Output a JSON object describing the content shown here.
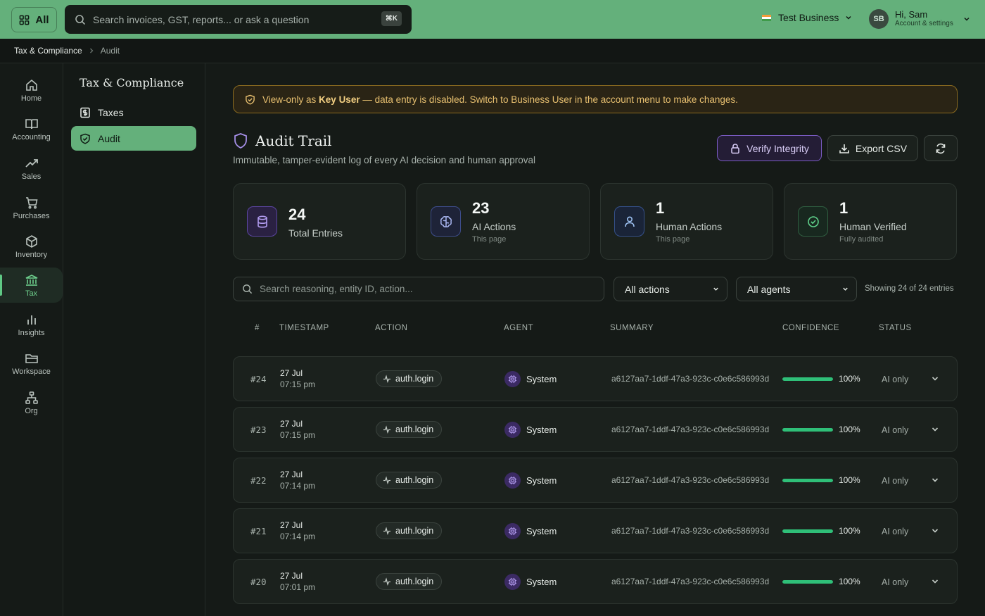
{
  "topbar": {
    "all_label": "All",
    "search_placeholder": "Search invoices, GST, reports... or ask a question",
    "shortcut": "⌘K",
    "business_name": "Test Business",
    "avatar_initials": "SB",
    "greeting": "Hi, Sam",
    "account_sub": "Account & settings"
  },
  "breadcrumb": {
    "parent": "Tax & Compliance",
    "current": "Audit"
  },
  "rail": [
    {
      "label": "Home",
      "icon": "home-icon"
    },
    {
      "label": "Accounting",
      "icon": "book-icon"
    },
    {
      "label": "Sales",
      "icon": "trend-icon"
    },
    {
      "label": "Purchases",
      "icon": "cart-icon"
    },
    {
      "label": "Inventory",
      "icon": "box-icon"
    },
    {
      "label": "Tax",
      "icon": "bank-icon"
    },
    {
      "label": "Insights",
      "icon": "bar-chart-icon"
    },
    {
      "label": "Workspace",
      "icon": "folder-icon"
    },
    {
      "label": "Org",
      "icon": "org-icon"
    }
  ],
  "subnav": {
    "title": "Tax & Compliance",
    "items": [
      {
        "label": "Taxes",
        "icon": "dollar-doc-icon"
      },
      {
        "label": "Audit",
        "icon": "shield-check-icon"
      }
    ]
  },
  "banner": {
    "prefix": "View-only as ",
    "role": "Key User",
    "suffix": " — data entry is disabled. Switch to Business User in the account menu to make changes."
  },
  "header": {
    "title": "Audit Trail",
    "subtitle": "Immutable, tamper-evident log of every AI decision and human approval",
    "verify_label": "Verify Integrity",
    "export_label": "Export CSV"
  },
  "stats": [
    {
      "value": "24",
      "label": "Total Entries",
      "sub": ""
    },
    {
      "value": "23",
      "label": "AI Actions",
      "sub": "This page"
    },
    {
      "value": "1",
      "label": "Human Actions",
      "sub": "This page"
    },
    {
      "value": "1",
      "label": "Human Verified",
      "sub": "Fully audited"
    }
  ],
  "filters": {
    "search_placeholder": "Search reasoning, entity ID, action...",
    "actions_selected": "All actions",
    "agents_selected": "All agents",
    "showing": "Showing 24 of 24 entries"
  },
  "table": {
    "columns": [
      "#",
      "TIMESTAMP",
      "ACTION",
      "AGENT",
      "SUMMARY",
      "CONFIDENCE",
      "STATUS"
    ],
    "rows": [
      {
        "num": "#24",
        "date": "27 Jul",
        "time": "07:15 pm",
        "action": "auth.login",
        "agent": "System",
        "summary": "a6127aa7-1ddf-47a3-923c-c0e6c586993d",
        "confidence": "100%",
        "confidence_value": 1.0,
        "status": "AI only"
      },
      {
        "num": "#23",
        "date": "27 Jul",
        "time": "07:15 pm",
        "action": "auth.login",
        "agent": "System",
        "summary": "a6127aa7-1ddf-47a3-923c-c0e6c586993d",
        "confidence": "100%",
        "confidence_value": 1.0,
        "status": "AI only"
      },
      {
        "num": "#22",
        "date": "27 Jul",
        "time": "07:14 pm",
        "action": "auth.login",
        "agent": "System",
        "summary": "a6127aa7-1ddf-47a3-923c-c0e6c586993d",
        "confidence": "100%",
        "confidence_value": 1.0,
        "status": "AI only"
      },
      {
        "num": "#21",
        "date": "27 Jul",
        "time": "07:14 pm",
        "action": "auth.login",
        "agent": "System",
        "summary": "a6127aa7-1ddf-47a3-923c-c0e6c586993d",
        "confidence": "100%",
        "confidence_value": 1.0,
        "status": "AI only"
      },
      {
        "num": "#20",
        "date": "27 Jul",
        "time": "07:01 pm",
        "action": "auth.login",
        "agent": "System",
        "summary": "a6127aa7-1ddf-47a3-923c-c0e6c586993d",
        "confidence": "100%",
        "confidence_value": 1.0,
        "status": "AI only"
      }
    ]
  },
  "colors": {
    "accent": "#64b07b",
    "warning": "#e8c070",
    "ai_purple": "#7b5cc4",
    "confidence": "#2fbf78"
  }
}
